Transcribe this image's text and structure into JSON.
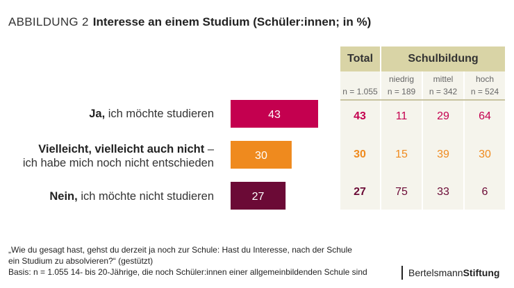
{
  "title": {
    "figure_label": "ABBILDUNG 2",
    "text": "Interesse an einem Studium (Schüler:innen; in %)"
  },
  "table": {
    "total_header": "Total",
    "group_header": "Schulbildung",
    "subcols": [
      {
        "label": "",
        "n": "n = 1.055"
      },
      {
        "label": "niedrig",
        "n": "n = 189"
      },
      {
        "label": "mittel",
        "n": "n = 342"
      },
      {
        "label": "hoch",
        "n": "n = 524"
      }
    ]
  },
  "rows": [
    {
      "label_bold": "Ja,",
      "label_rest": "ich möchte studieren",
      "label_line2": ""
    },
    {
      "label_bold": "Vielleicht, vielleicht auch nicht",
      "label_rest": "–",
      "label_line2": "ich habe mich noch nicht entschieden"
    },
    {
      "label_bold": "Nein,",
      "label_rest": "ich möchte nicht studieren",
      "label_line2": ""
    }
  ],
  "chart_data": {
    "type": "bar",
    "title": "Interesse an einem Studium (Schüler:innen; in %)",
    "categories": [
      "Ja, ich möchte studieren",
      "Vielleicht, vielleicht auch nicht – ich habe mich noch nicht entschieden",
      "Nein, ich möchte nicht studieren"
    ],
    "values": [
      43,
      30,
      27
    ],
    "colors": [
      "#c4004f",
      "#ef8a1e",
      "#6b0a36"
    ],
    "table_values": [
      {
        "total": "43",
        "niedrig": "11",
        "mittel": "29",
        "hoch": "64"
      },
      {
        "total": "30",
        "niedrig": "15",
        "mittel": "39",
        "hoch": "30"
      },
      {
        "total": "27",
        "niedrig": "75",
        "mittel": "33",
        "hoch": "6"
      }
    ]
  },
  "footnote": {
    "line1": "„Wie du gesagt hast, gehst du derzeit ja noch zur Schule: Hast du Interesse, nach der Schule",
    "line2": "ein Studium zu absolvieren?“ (gestützt)",
    "line3": "Basis: n = 1.055 14- bis 20-Jährige, die noch Schüler:innen einer allgemeinbildenden Schule sind"
  },
  "brand": {
    "part1": "Bertelsmann",
    "part2": "Stiftung"
  }
}
